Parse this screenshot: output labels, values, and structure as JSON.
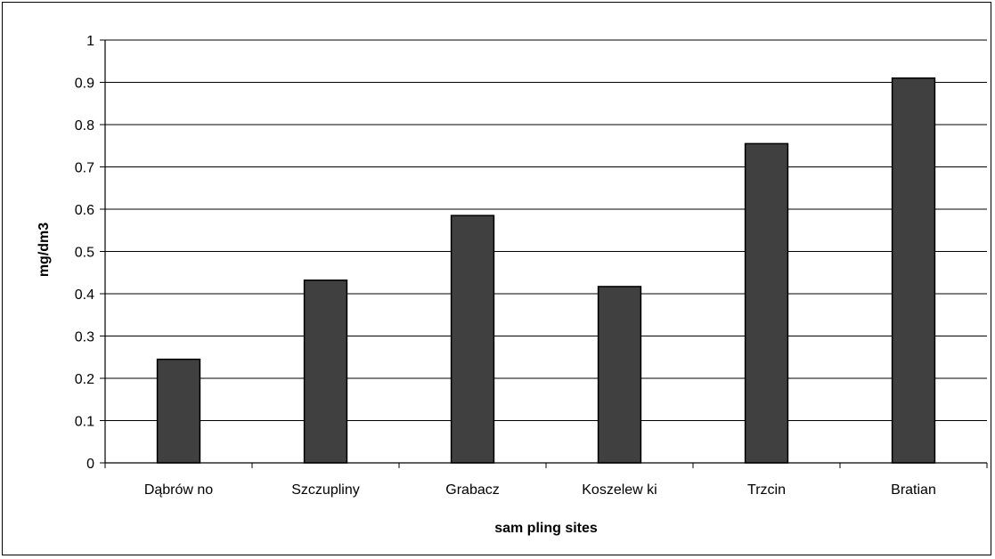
{
  "chart_data": {
    "type": "bar",
    "title": "",
    "xlabel": "sam pling sites",
    "ylabel": "mg/dm3",
    "categories": [
      "Dąbrów no",
      "Szczupliny",
      "Grabacz",
      "Koszelew ki",
      "Trzcin",
      "Bratian"
    ],
    "values": [
      0.245,
      0.432,
      0.585,
      0.417,
      0.755,
      0.91
    ],
    "ylim": [
      0,
      1
    ],
    "yticks": [
      "0",
      "0.1",
      "0.2",
      "0.3",
      "0.4",
      "0.5",
      "0.6",
      "0.7",
      "0.8",
      "0.9",
      "1"
    ],
    "grid": true,
    "legend": "none",
    "colors": {
      "bar": "#404040",
      "bar_border": "#000000",
      "grid": "#000000",
      "background": "#ffffff"
    }
  }
}
